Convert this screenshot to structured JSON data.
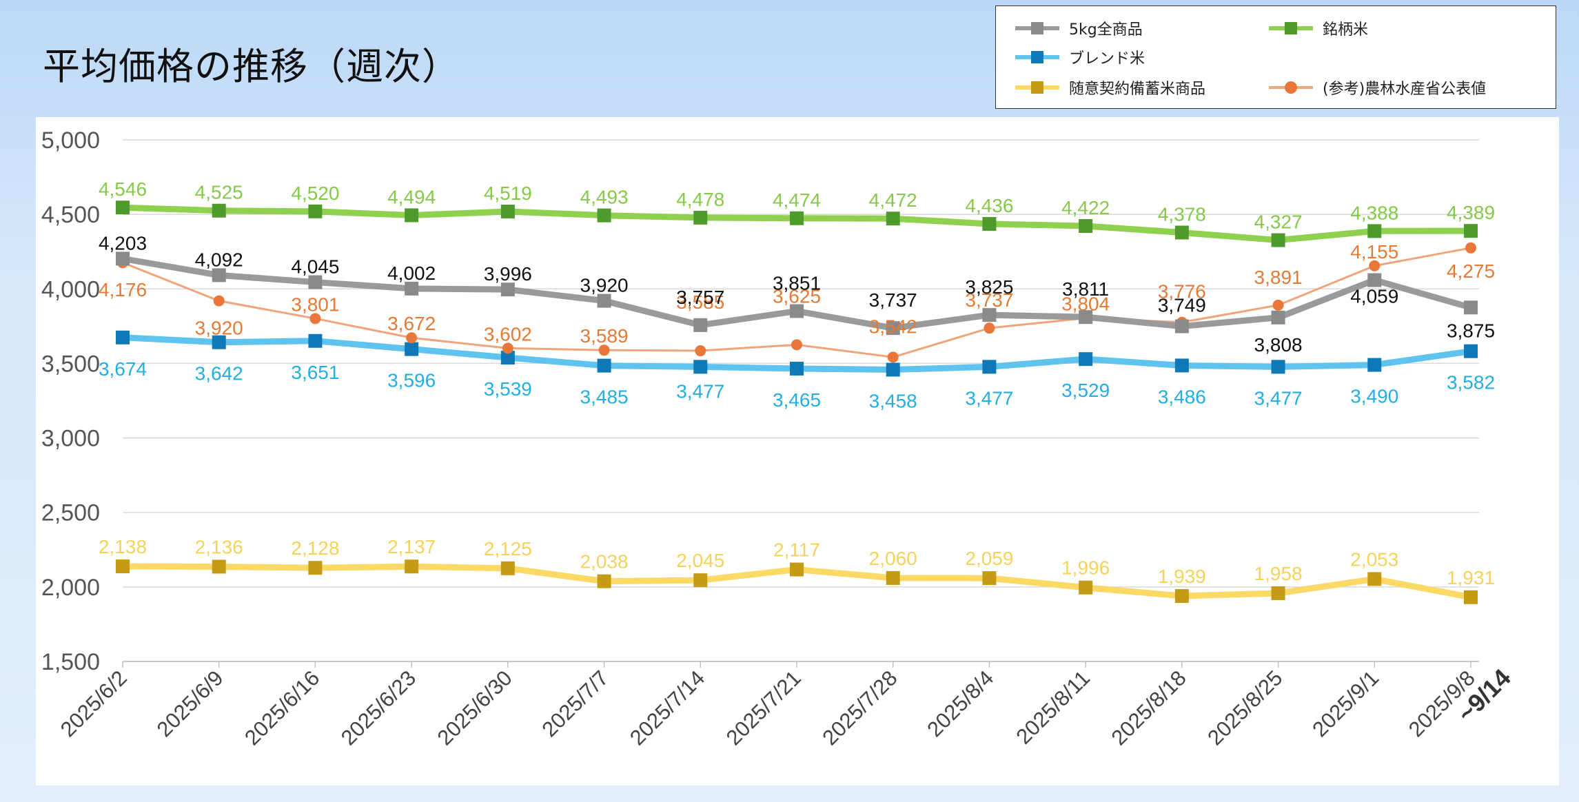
{
  "title": "平均価格の推移（週次）",
  "chart_data": {
    "type": "line",
    "categories": [
      "2025/6/2",
      "2025/6/9",
      "2025/6/16",
      "2025/6/23",
      "2025/6/30",
      "2025/7/7",
      "2025/7/14",
      "2025/7/21",
      "2025/7/28",
      "2025/8/4",
      "2025/8/11",
      "2025/8/18",
      "2025/8/25",
      "2025/9/1",
      "2025/9/8"
    ],
    "x_extra_label": "~9/14",
    "ylim": [
      1500,
      5000
    ],
    "yticks": [
      1500,
      2000,
      2500,
      3000,
      3500,
      4000,
      4500,
      5000
    ],
    "ytick_labels": [
      "1,500",
      "2,000",
      "2,500",
      "3,000",
      "3,500",
      "4,000",
      "4,500",
      "5,000"
    ],
    "grid": true,
    "legend_position": "top-right",
    "series": [
      {
        "name": "5kg全商品",
        "color": "#9a9a9a",
        "label_color": "#111111",
        "marker": "square",
        "values": [
          4203,
          4092,
          4045,
          4002,
          3996,
          3920,
          3757,
          3851,
          3737,
          3825,
          3811,
          3749,
          3808,
          4059,
          3875
        ],
        "labels": [
          "4,203",
          "4,092",
          "4,045",
          "4,002",
          "3,996",
          "3,920",
          "3,757",
          "3,851",
          "3,737",
          "3,825",
          "3,811",
          "3,749",
          "3,808",
          "4,059",
          "3,875"
        ]
      },
      {
        "name": "ブレンド米",
        "color": "#5ec3ee",
        "label_color": "#22aee3",
        "marker": "square",
        "marker_color": "#0f79b8",
        "values": [
          3674,
          3642,
          3651,
          3596,
          3539,
          3485,
          3477,
          3465,
          3458,
          3477,
          3529,
          3486,
          3477,
          3490,
          3582
        ],
        "labels": [
          "3,674",
          "3,642",
          "3,651",
          "3,596",
          "3,539",
          "3,485",
          "3,477",
          "3,465",
          "3,458",
          "3,477",
          "3,529",
          "3,486",
          "3,477",
          "3,490",
          "3,582"
        ]
      },
      {
        "name": "随意契約備蓄米商品",
        "color": "#fbd965",
        "label_color": "#f4d35c",
        "marker": "square",
        "marker_color": "#c59b14",
        "values": [
          2138,
          2136,
          2128,
          2137,
          2125,
          2038,
          2045,
          2117,
          2060,
          2059,
          1996,
          1939,
          1958,
          2053,
          1931
        ],
        "labels": [
          "2,138",
          "2,136",
          "2,128",
          "2,137",
          "2,125",
          "2,038",
          "2,045",
          "2,117",
          "2,060",
          "2,059",
          "1,996",
          "1,939",
          "1,958",
          "2,053",
          "1,931"
        ]
      },
      {
        "name": "銘柄米",
        "color": "#8fd14f",
        "label_color": "#86c94a",
        "marker": "square",
        "marker_color": "#4f9a2c",
        "values": [
          4546,
          4525,
          4520,
          4494,
          4519,
          4493,
          4478,
          4474,
          4472,
          4436,
          4422,
          4378,
          4327,
          4388,
          4389
        ],
        "labels": [
          "4,546",
          "4,525",
          "4,520",
          "4,494",
          "4,519",
          "4,493",
          "4,478",
          "4,474",
          "4,472",
          "4,436",
          "4,422",
          "4,378",
          "4,327",
          "4,388",
          "4,389"
        ]
      },
      {
        "name": "(参考)農林水産省公表値",
        "color": "#f0a47b",
        "label_color": "#e57a35",
        "marker": "circle",
        "marker_color": "#e9773a",
        "values": [
          4176,
          3920,
          3801,
          3672,
          3602,
          3589,
          3585,
          3625,
          3542,
          3737,
          3804,
          3776,
          3891,
          4155,
          4275
        ],
        "labels": [
          "4,176",
          "3,920",
          "3,801",
          "3,672",
          "3,602",
          "3,589",
          "3,585",
          "3,625",
          "3,542",
          "3,737",
          "3,804",
          "3,776",
          "3,891",
          "4,155",
          "4,275"
        ]
      }
    ]
  }
}
